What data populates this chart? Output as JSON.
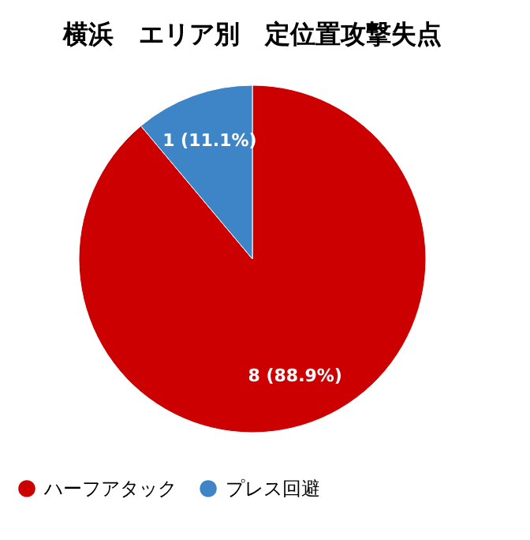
{
  "chart_data": {
    "type": "pie",
    "title": "横浜　エリア別　定位置攻撃失点",
    "categories": [
      "ハーフアタック",
      "プレス回避"
    ],
    "values": [
      8,
      1
    ],
    "colors": [
      "#cc0000",
      "#3d85c6"
    ],
    "value_labels": [
      "8 (88.9%)",
      "1 (11.1%)"
    ],
    "legend": "bottom"
  }
}
